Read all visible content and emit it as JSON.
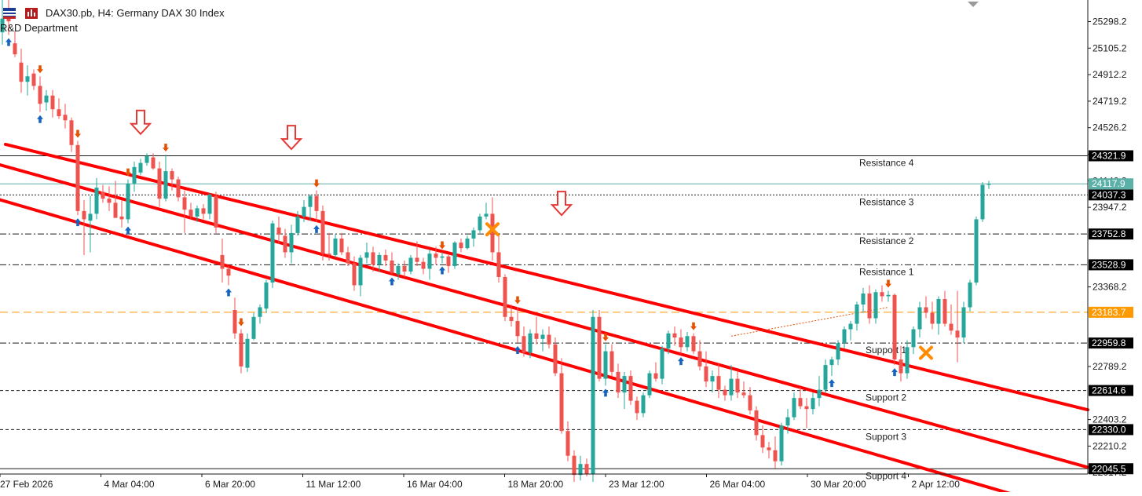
{
  "header": {
    "title": "DAX30.pb, H4:  Germany DAX 30 Index",
    "subtitle": "R&D Department",
    "icons": [
      "flag-icon",
      "chart-type-icon"
    ]
  },
  "colors": {
    "bull": "#26a69a",
    "bear": "#ef5350",
    "channel": "#ff0000",
    "highlight_line": "#ff9900",
    "current_line": "#5bb0a8",
    "buy_arrow": "#1565c0",
    "sell_arrow": "#e65100",
    "cross": "#ff8c00"
  },
  "chart_data": {
    "type": "candlestick",
    "symbol": "DAX30.pb",
    "timeframe": "H4",
    "ylim": [
      22007,
      25455
    ],
    "y_ticks": [
      25298.2,
      25105.2,
      24912.2,
      24719.2,
      24526.2,
      24332.2,
      24140.2,
      23947.2,
      23368.2,
      22789.2,
      22403.2,
      22210.2,
      22017.2
    ],
    "x_ticks": [
      "27 Feb 2026",
      "4 Mar 04:00",
      "6 Mar 20:00",
      "11 Mar 12:00",
      "16 Mar 04:00",
      "18 Mar 20:00",
      "23 Mar 12:00",
      "26 Mar 04:00",
      "30 Mar 20:00",
      "2 Apr 12:00"
    ],
    "current_price": 24117.9,
    "levels": [
      {
        "name": "Resistance 4",
        "value": 24321.9,
        "style": "solid"
      },
      {
        "name": "Resistance 3",
        "value": 24037.3,
        "style": "dotted"
      },
      {
        "name": "Resistance 2",
        "value": 23752.8,
        "style": "dashdot"
      },
      {
        "name": "Resistance 1",
        "value": 23528.9,
        "style": "dashdot"
      },
      {
        "name": "",
        "value": 23183.7,
        "style": "dashed-orange"
      },
      {
        "name": "Support 1",
        "value": 22959.8,
        "style": "dashdot"
      },
      {
        "name": "Support 2",
        "value": 22614.6,
        "style": "dashed"
      },
      {
        "name": "Support 3",
        "value": 22330.0,
        "style": "dashed"
      },
      {
        "name": "Support 4",
        "value": 22045.5,
        "style": "solid"
      }
    ],
    "channel_lines": [
      {
        "from": [
          0.5,
          24405
        ],
        "to": [
          120.5,
          23060
        ]
      },
      {
        "from": [
          -1.5,
          24270
        ],
        "to": [
          120.5,
          22720
        ]
      },
      {
        "from": [
          -2.5,
          24030
        ],
        "to": [
          120.5,
          22395
        ]
      }
    ],
    "candles": [
      {
        "o": 25220,
        "h": 25520,
        "l": 25130,
        "c": 25320
      },
      {
        "o": 25320,
        "h": 25460,
        "l": 25200,
        "c": 25300
      },
      {
        "o": 25140,
        "h": 25230,
        "l": 25040,
        "c": 25060
      },
      {
        "o": 25000,
        "h": 25100,
        "l": 24780,
        "c": 24860
      },
      {
        "o": 24860,
        "h": 24980,
        "l": 24760,
        "c": 24900
      },
      {
        "o": 24920,
        "h": 24950,
        "l": 24800,
        "c": 24830
      },
      {
        "o": 24830,
        "h": 24900,
        "l": 24640,
        "c": 24700
      },
      {
        "o": 24710,
        "h": 24800,
        "l": 24650,
        "c": 24760
      },
      {
        "o": 24760,
        "h": 24800,
        "l": 24600,
        "c": 24660
      },
      {
        "o": 24660,
        "h": 24740,
        "l": 24590,
        "c": 24610
      },
      {
        "o": 24620,
        "h": 24700,
        "l": 24520,
        "c": 24580
      },
      {
        "o": 24580,
        "h": 24600,
        "l": 24350,
        "c": 24400
      },
      {
        "o": 24400,
        "h": 24430,
        "l": 23890,
        "c": 23920
      },
      {
        "o": 23920,
        "h": 24000,
        "l": 23600,
        "c": 23860
      },
      {
        "o": 23850,
        "h": 24030,
        "l": 23620,
        "c": 23900
      },
      {
        "o": 23900,
        "h": 24160,
        "l": 23860,
        "c": 24090
      },
      {
        "o": 24060,
        "h": 24110,
        "l": 23980,
        "c": 24010
      },
      {
        "o": 24010,
        "h": 24100,
        "l": 23920,
        "c": 23980
      },
      {
        "o": 23980,
        "h": 24140,
        "l": 23900,
        "c": 23870
      },
      {
        "o": 23880,
        "h": 24000,
        "l": 23800,
        "c": 23860
      },
      {
        "o": 23860,
        "h": 24150,
        "l": 23830,
        "c": 24120
      },
      {
        "o": 24120,
        "h": 24280,
        "l": 24060,
        "c": 24240
      },
      {
        "o": 24200,
        "h": 24300,
        "l": 24180,
        "c": 24270
      },
      {
        "o": 24270,
        "h": 24340,
        "l": 24250,
        "c": 24320
      },
      {
        "o": 24310,
        "h": 24340,
        "l": 24220,
        "c": 24230
      },
      {
        "o": 24230,
        "h": 24280,
        "l": 23950,
        "c": 24010
      },
      {
        "o": 24010,
        "h": 24330,
        "l": 23990,
        "c": 24210
      },
      {
        "o": 24210,
        "h": 24230,
        "l": 24070,
        "c": 24150
      },
      {
        "o": 24150,
        "h": 24170,
        "l": 23990,
        "c": 24020
      },
      {
        "o": 24020,
        "h": 24070,
        "l": 23760,
        "c": 23930
      },
      {
        "o": 23930,
        "h": 23980,
        "l": 23860,
        "c": 23880
      },
      {
        "o": 23880,
        "h": 23960,
        "l": 23840,
        "c": 23940
      },
      {
        "o": 23940,
        "h": 23970,
        "l": 23860,
        "c": 23900
      },
      {
        "o": 23900,
        "h": 24050,
        "l": 23860,
        "c": 24040
      },
      {
        "o": 24030,
        "h": 24060,
        "l": 23760,
        "c": 23800
      },
      {
        "o": 23600,
        "h": 23720,
        "l": 23400,
        "c": 23500
      },
      {
        "o": 23500,
        "h": 23520,
        "l": 23380,
        "c": 23450
      },
      {
        "o": 23200,
        "h": 23290,
        "l": 22990,
        "c": 23030
      },
      {
        "o": 23030,
        "h": 23060,
        "l": 22740,
        "c": 22790
      },
      {
        "o": 22780,
        "h": 23030,
        "l": 22750,
        "c": 22990
      },
      {
        "o": 22990,
        "h": 23180,
        "l": 22980,
        "c": 23150
      },
      {
        "o": 23150,
        "h": 23240,
        "l": 23100,
        "c": 23220
      },
      {
        "o": 23210,
        "h": 23420,
        "l": 23180,
        "c": 23400
      },
      {
        "o": 23400,
        "h": 23850,
        "l": 23360,
        "c": 23830
      },
      {
        "o": 23800,
        "h": 23880,
        "l": 23680,
        "c": 23750
      },
      {
        "o": 23740,
        "h": 23790,
        "l": 23580,
        "c": 23620
      },
      {
        "o": 23620,
        "h": 23820,
        "l": 23540,
        "c": 23760
      },
      {
        "o": 23760,
        "h": 23920,
        "l": 23740,
        "c": 23880
      },
      {
        "o": 23880,
        "h": 24000,
        "l": 23840,
        "c": 23950
      },
      {
        "o": 23950,
        "h": 24040,
        "l": 23850,
        "c": 24030
      },
      {
        "o": 24030,
        "h": 24070,
        "l": 23840,
        "c": 23920
      },
      {
        "o": 23920,
        "h": 23960,
        "l": 23560,
        "c": 23610
      },
      {
        "o": 23610,
        "h": 23760,
        "l": 23560,
        "c": 23600
      },
      {
        "o": 23600,
        "h": 23750,
        "l": 23580,
        "c": 23720
      },
      {
        "o": 23720,
        "h": 23760,
        "l": 23600,
        "c": 23620
      },
      {
        "o": 23620,
        "h": 23660,
        "l": 23520,
        "c": 23540
      },
      {
        "o": 23540,
        "h": 23590,
        "l": 23340,
        "c": 23380
      },
      {
        "o": 23380,
        "h": 23600,
        "l": 23300,
        "c": 23580
      },
      {
        "o": 23580,
        "h": 23690,
        "l": 23540,
        "c": 23620
      },
      {
        "o": 23620,
        "h": 23660,
        "l": 23480,
        "c": 23530
      },
      {
        "o": 23530,
        "h": 23620,
        "l": 23480,
        "c": 23600
      },
      {
        "o": 23600,
        "h": 23640,
        "l": 23520,
        "c": 23560
      },
      {
        "o": 23560,
        "h": 23620,
        "l": 23460,
        "c": 23470
      },
      {
        "o": 23460,
        "h": 23540,
        "l": 23420,
        "c": 23520
      },
      {
        "o": 23520,
        "h": 23560,
        "l": 23440,
        "c": 23480
      },
      {
        "o": 23480,
        "h": 23600,
        "l": 23460,
        "c": 23580
      },
      {
        "o": 23580,
        "h": 23700,
        "l": 23520,
        "c": 23550
      },
      {
        "o": 23550,
        "h": 23580,
        "l": 23460,
        "c": 23500
      },
      {
        "o": 23500,
        "h": 23640,
        "l": 23420,
        "c": 23610
      },
      {
        "o": 23610,
        "h": 23660,
        "l": 23530,
        "c": 23580
      },
      {
        "o": 23580,
        "h": 23620,
        "l": 23540,
        "c": 23590
      },
      {
        "o": 23590,
        "h": 23600,
        "l": 23470,
        "c": 23520
      },
      {
        "o": 23520,
        "h": 23700,
        "l": 23500,
        "c": 23690
      },
      {
        "o": 23690,
        "h": 23720,
        "l": 23620,
        "c": 23650
      },
      {
        "o": 23650,
        "h": 23740,
        "l": 23640,
        "c": 23720
      },
      {
        "o": 23720,
        "h": 23800,
        "l": 23660,
        "c": 23780
      },
      {
        "o": 23780,
        "h": 23900,
        "l": 23760,
        "c": 23880
      },
      {
        "o": 23880,
        "h": 23980,
        "l": 23860,
        "c": 23900
      },
      {
        "o": 23900,
        "h": 24020,
        "l": 23560,
        "c": 23620
      },
      {
        "o": 23620,
        "h": 23760,
        "l": 23400,
        "c": 23440
      },
      {
        "o": 23440,
        "h": 23460,
        "l": 23120,
        "c": 23150
      },
      {
        "o": 23150,
        "h": 23240,
        "l": 23080,
        "c": 23120
      },
      {
        "o": 23120,
        "h": 23220,
        "l": 22960,
        "c": 23010
      },
      {
        "o": 23010,
        "h": 23080,
        "l": 22860,
        "c": 22890
      },
      {
        "o": 22890,
        "h": 23060,
        "l": 22850,
        "c": 23030
      },
      {
        "o": 23030,
        "h": 23150,
        "l": 22950,
        "c": 22990
      },
      {
        "o": 22990,
        "h": 23060,
        "l": 22900,
        "c": 23020
      },
      {
        "o": 23020,
        "h": 23080,
        "l": 22920,
        "c": 22950
      },
      {
        "o": 22950,
        "h": 23000,
        "l": 22720,
        "c": 22740
      },
      {
        "o": 22740,
        "h": 22850,
        "l": 22300,
        "c": 22320
      },
      {
        "o": 22320,
        "h": 22390,
        "l": 22100,
        "c": 22140
      },
      {
        "o": 22140,
        "h": 22180,
        "l": 21950,
        "c": 22000
      },
      {
        "o": 22000,
        "h": 22140,
        "l": 21960,
        "c": 22080
      },
      {
        "o": 22080,
        "h": 22120,
        "l": 21990,
        "c": 22010
      },
      {
        "o": 22010,
        "h": 23200,
        "l": 21950,
        "c": 23150
      },
      {
        "o": 23150,
        "h": 23200,
        "l": 22680,
        "c": 22700
      },
      {
        "o": 22700,
        "h": 22950,
        "l": 22650,
        "c": 22900
      },
      {
        "o": 22900,
        "h": 22950,
        "l": 22720,
        "c": 22750
      },
      {
        "o": 22750,
        "h": 22810,
        "l": 22560,
        "c": 22600
      },
      {
        "o": 22600,
        "h": 22750,
        "l": 22480,
        "c": 22720
      },
      {
        "o": 22720,
        "h": 22760,
        "l": 22510,
        "c": 22540
      },
      {
        "o": 22540,
        "h": 22570,
        "l": 22400,
        "c": 22450
      },
      {
        "o": 22450,
        "h": 22600,
        "l": 22420,
        "c": 22580
      },
      {
        "o": 22580,
        "h": 22760,
        "l": 22560,
        "c": 22740
      },
      {
        "o": 22740,
        "h": 22820,
        "l": 22680,
        "c": 22700
      },
      {
        "o": 22700,
        "h": 22940,
        "l": 22660,
        "c": 22920
      },
      {
        "o": 22920,
        "h": 23050,
        "l": 22880,
        "c": 23030
      },
      {
        "o": 23030,
        "h": 23080,
        "l": 22940,
        "c": 23000
      },
      {
        "o": 23000,
        "h": 23060,
        "l": 22880,
        "c": 22930
      },
      {
        "o": 22930,
        "h": 23040,
        "l": 22900,
        "c": 23010
      },
      {
        "o": 23010,
        "h": 23030,
        "l": 22880,
        "c": 22900
      },
      {
        "o": 22900,
        "h": 22980,
        "l": 22760,
        "c": 22790
      },
      {
        "o": 22790,
        "h": 22900,
        "l": 22640,
        "c": 22680
      },
      {
        "o": 22680,
        "h": 22760,
        "l": 22600,
        "c": 22720
      },
      {
        "o": 22720,
        "h": 22810,
        "l": 22560,
        "c": 22620
      },
      {
        "o": 22620,
        "h": 22650,
        "l": 22540,
        "c": 22580
      }
    ]
  },
  "chart_data_continued": {
    "candles": [
      {
        "o": 22580,
        "h": 22800,
        "l": 22540,
        "c": 22700
      },
      {
        "o": 22700,
        "h": 22760,
        "l": 22560,
        "c": 22600
      },
      {
        "o": 22600,
        "h": 22680,
        "l": 22560,
        "c": 22580
      },
      {
        "o": 22580,
        "h": 22640,
        "l": 22440,
        "c": 22470
      },
      {
        "o": 22470,
        "h": 22500,
        "l": 22250,
        "c": 22290
      },
      {
        "o": 22290,
        "h": 22360,
        "l": 22160,
        "c": 22200
      },
      {
        "o": 22200,
        "h": 22240,
        "l": 22120,
        "c": 22180
      },
      {
        "o": 22180,
        "h": 22280,
        "l": 22050,
        "c": 22100
      },
      {
        "o": 22100,
        "h": 22380,
        "l": 22070,
        "c": 22360
      },
      {
        "o": 22360,
        "h": 22480,
        "l": 22300,
        "c": 22420
      },
      {
        "o": 22420,
        "h": 22600,
        "l": 22400,
        "c": 22560
      },
      {
        "o": 22560,
        "h": 22640,
        "l": 22480,
        "c": 22500
      },
      {
        "o": 22500,
        "h": 22560,
        "l": 22340,
        "c": 22480
      },
      {
        "o": 22480,
        "h": 22600,
        "l": 22440,
        "c": 22560
      },
      {
        "o": 22560,
        "h": 22720,
        "l": 22500,
        "c": 22620
      },
      {
        "o": 22620,
        "h": 22840,
        "l": 22600,
        "c": 22800
      },
      {
        "o": 22800,
        "h": 22860,
        "l": 22720,
        "c": 22840
      },
      {
        "o": 22840,
        "h": 22980,
        "l": 22800,
        "c": 22960
      },
      {
        "o": 22960,
        "h": 23080,
        "l": 22920,
        "c": 23060
      },
      {
        "o": 23060,
        "h": 23120,
        "l": 22980,
        "c": 23100
      },
      {
        "o": 23100,
        "h": 23260,
        "l": 23050,
        "c": 23240
      },
      {
        "o": 23240,
        "h": 23360,
        "l": 23180,
        "c": 23320
      },
      {
        "o": 23320,
        "h": 23380,
        "l": 23100,
        "c": 23140
      },
      {
        "o": 23140,
        "h": 23350,
        "l": 23100,
        "c": 23330
      },
      {
        "o": 23330,
        "h": 23380,
        "l": 23260,
        "c": 23300
      },
      {
        "o": 23300,
        "h": 23340,
        "l": 23260,
        "c": 23310
      },
      {
        "o": 23310,
        "h": 23320,
        "l": 22800,
        "c": 22840
      },
      {
        "o": 22840,
        "h": 22940,
        "l": 22680,
        "c": 22740
      },
      {
        "o": 22740,
        "h": 22980,
        "l": 22700,
        "c": 22930
      },
      {
        "o": 22930,
        "h": 23080,
        "l": 22880,
        "c": 23060
      },
      {
        "o": 23060,
        "h": 23260,
        "l": 23000,
        "c": 23220
      },
      {
        "o": 23220,
        "h": 23300,
        "l": 23140,
        "c": 23180
      },
      {
        "o": 23180,
        "h": 23260,
        "l": 23060,
        "c": 23100
      },
      {
        "o": 23100,
        "h": 23300,
        "l": 23020,
        "c": 23280
      },
      {
        "o": 23280,
        "h": 23340,
        "l": 23080,
        "c": 23100
      },
      {
        "o": 23100,
        "h": 23240,
        "l": 23020,
        "c": 23050
      },
      {
        "o": 23050,
        "h": 23340,
        "l": 22820,
        "c": 23000
      },
      {
        "o": 23000,
        "h": 23260,
        "l": 22960,
        "c": 23220
      },
      {
        "o": 23220,
        "h": 23420,
        "l": 23190,
        "c": 23400
      },
      {
        "o": 23400,
        "h": 23880,
        "l": 23380,
        "c": 23860
      },
      {
        "o": 23860,
        "h": 24130,
        "l": 23840,
        "c": 24110
      },
      {
        "o": 24110,
        "h": 24140,
        "l": 24080,
        "c": 24117.9
      }
    ],
    "signals": [
      {
        "i": 1,
        "type": "buy"
      },
      {
        "i": 6,
        "type": "sell"
      },
      {
        "i": 6,
        "type": "buy"
      },
      {
        "i": 12,
        "type": "sell"
      },
      {
        "i": 12,
        "type": "buy"
      },
      {
        "i": 20,
        "type": "sell"
      },
      {
        "i": 20,
        "type": "buy"
      },
      {
        "i": 26,
        "type": "sell"
      },
      {
        "i": 36,
        "type": "buy"
      },
      {
        "i": 38,
        "type": "sell"
      },
      {
        "i": 50,
        "type": "sell"
      },
      {
        "i": 50,
        "type": "buy"
      },
      {
        "i": 62,
        "type": "buy"
      },
      {
        "i": 70,
        "type": "sell"
      },
      {
        "i": 70,
        "type": "buy"
      },
      {
        "i": 82,
        "type": "sell"
      },
      {
        "i": 82,
        "type": "buy"
      },
      {
        "i": 96,
        "type": "sell"
      },
      {
        "i": 96,
        "type": "buy"
      },
      {
        "i": 110,
        "type": "sell"
      },
      {
        "i": 108,
        "type": "buy"
      },
      {
        "i": 132,
        "type": "buy"
      },
      {
        "i": 141,
        "type": "sell"
      },
      {
        "i": 142,
        "type": "buy"
      }
    ],
    "big_down_arrows": [
      {
        "i": 22,
        "price": 24480
      },
      {
        "i": 46,
        "price": 24370
      },
      {
        "i": 89,
        "price": 23890
      }
    ],
    "crosses": [
      {
        "i": 78,
        "price": 23787
      },
      {
        "i": 147,
        "price": 22889
      }
    ],
    "thin_line": {
      "from": [
        116,
        23010
      ],
      "to": [
        141,
        23220
      ]
    }
  }
}
